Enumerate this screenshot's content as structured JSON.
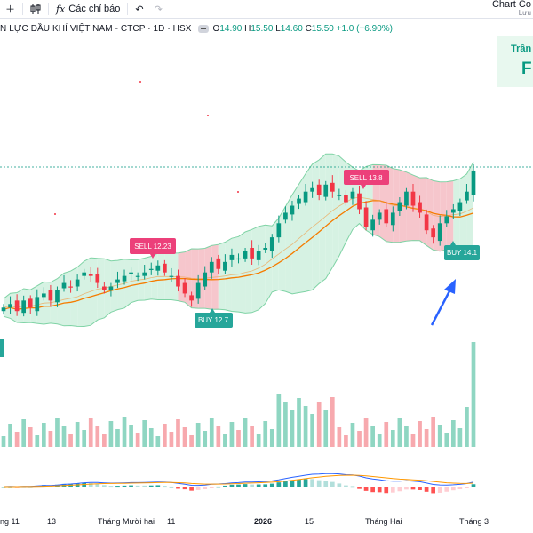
{
  "toolbar": {
    "indicators_label": "Các chỉ báo"
  },
  "brand": {
    "line1": "Chart Co",
    "line2": "Lưu"
  },
  "legend": {
    "symbol_title": "N LỰC DẦU KHÍ VIỆT NAM - CTCP · 1D · HSX",
    "open_key": "O",
    "open": "14.90",
    "high_key": "H",
    "high": "15.50",
    "low_key": "L",
    "low": "14.60",
    "close_key": "C",
    "close": "15.50",
    "change": "+1.0 (+6.90%)"
  },
  "overlay": {
    "line1": "Trần",
    "line2": "F"
  },
  "signals": {
    "sell1": "SELL 12.23",
    "buy1": "BUY 12.7",
    "sell2": "SELL 13.8",
    "buy2": "BUY 14.1"
  },
  "time_axis": {
    "labels": [
      "ng 11",
      "13",
      "Tháng Mười hai",
      "11",
      "2026",
      "15",
      "Tháng Hai",
      "Tháng 3"
    ]
  },
  "colors": {
    "up": "#089981",
    "down": "#f23645",
    "band_green": "#d6f2e3",
    "band_red": "#f6c6cc",
    "band_line": "#7fd3a5",
    "ma": "#f57c00",
    "macd": "#2962ff",
    "signal": "#ff9800",
    "arrow": "#2962ff"
  },
  "chart_data": {
    "type": "candlestick",
    "title": "N LỰC DẦU KHÍ VIỆT NAM - CTCP · 1D · HSX",
    "last_bar": {
      "open": 14.9,
      "high": 15.5,
      "low": 14.6,
      "close": 15.5,
      "change": 1.0,
      "change_pct": 6.9
    },
    "approx_closes": [
      11.6,
      11.7,
      11.5,
      11.8,
      11.6,
      11.9,
      12.0,
      11.8,
      12.1,
      12.3,
      12.2,
      12.4,
      12.6,
      12.5,
      12.3,
      12.1,
      12.2,
      12.4,
      12.5,
      12.6,
      12.5,
      12.6,
      12.7,
      12.8,
      12.6,
      12.5,
      12.2,
      12.0,
      11.8,
      12.3,
      12.6,
      12.9,
      12.7,
      12.9,
      13.1,
      13.0,
      13.2,
      13.0,
      13.2,
      13.3,
      13.6,
      14.0,
      14.3,
      14.5,
      14.7,
      14.9,
      15.0,
      14.8,
      15.1,
      14.9,
      14.8,
      14.6,
      14.9,
      14.4,
      13.9,
      14.1,
      14.3,
      14.0,
      14.3,
      14.6,
      14.9,
      14.5,
      14.3,
      13.8,
      13.6,
      14.0,
      14.2,
      14.4,
      14.6,
      14.9,
      15.5
    ],
    "signals": [
      {
        "type": "sell",
        "price": 12.23
      },
      {
        "type": "buy",
        "price": 12.7
      },
      {
        "type": "sell",
        "price": 13.8
      },
      {
        "type": "buy",
        "price": 14.1
      }
    ],
    "indicators": [
      "Bollinger Bands",
      "Moving Average",
      "Volume",
      "MACD"
    ]
  }
}
